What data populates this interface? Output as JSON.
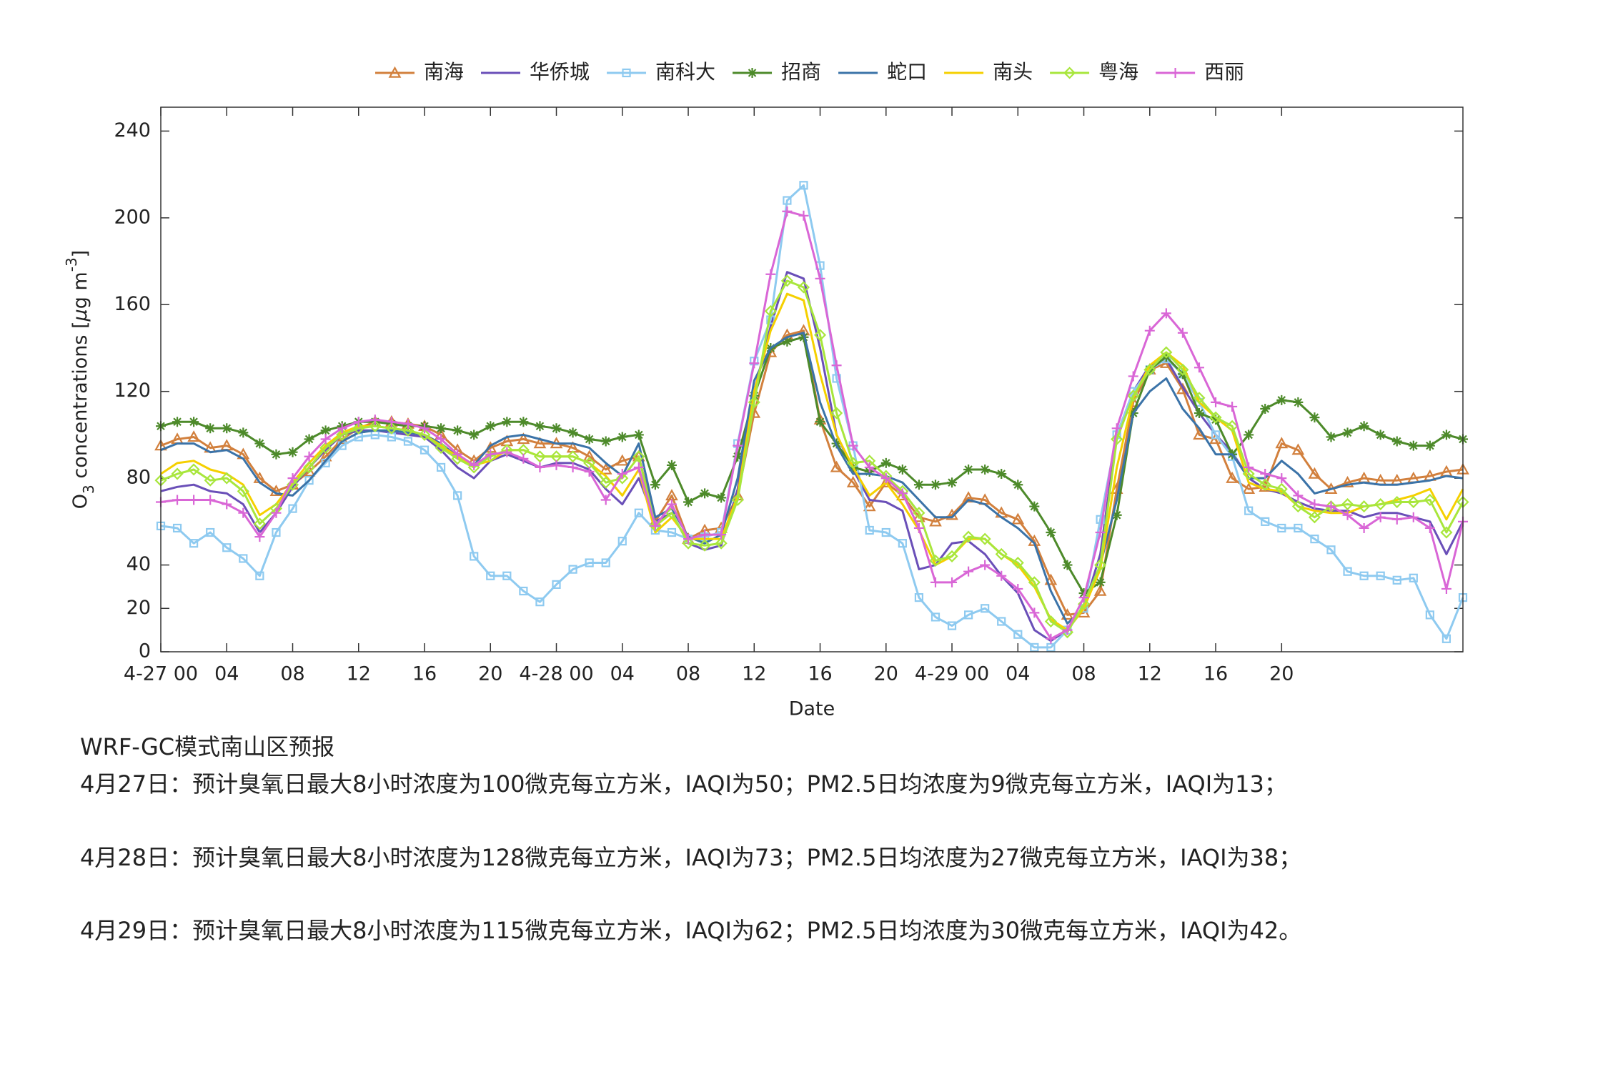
{
  "chart_data": {
    "type": "line",
    "xlabel": "Date",
    "ylabel_parts": [
      {
        "text": "O"
      },
      {
        "text": "3",
        "script": "sub"
      },
      {
        "text": " concentrations ["
      },
      {
        "text": "μ",
        "style": "italic"
      },
      {
        "text": "g m"
      },
      {
        "text": "-3",
        "script": "sup"
      },
      {
        "text": "]"
      }
    ],
    "x": [
      0,
      1,
      2,
      3,
      4,
      5,
      6,
      7,
      8,
      9,
      10,
      11,
      12,
      13,
      14,
      15,
      16,
      17,
      18,
      19,
      20,
      21,
      22,
      23,
      24,
      25,
      26,
      27,
      28,
      29,
      30,
      31,
      32,
      33,
      34,
      35,
      36,
      37,
      38,
      39,
      40,
      41,
      42,
      43,
      44,
      45,
      46,
      47,
      48,
      49,
      50,
      51,
      52,
      53,
      54,
      55,
      56,
      57,
      58,
      59,
      60,
      61,
      62,
      63,
      64,
      65,
      66,
      67,
      68,
      69,
      70,
      71,
      72,
      73,
      74,
      75,
      76,
      77,
      78,
      79
    ],
    "xlim": [
      0,
      79
    ],
    "xticks": [
      {
        "value": 0,
        "label": "4-27 00"
      },
      {
        "value": 4,
        "label": "04"
      },
      {
        "value": 8,
        "label": "08"
      },
      {
        "value": 12,
        "label": "12"
      },
      {
        "value": 16,
        "label": "16"
      },
      {
        "value": 20,
        "label": "20"
      },
      {
        "value": 24,
        "label": "4-28 00"
      },
      {
        "value": 28,
        "label": "04"
      },
      {
        "value": 32,
        "label": "08"
      },
      {
        "value": 36,
        "label": "12"
      },
      {
        "value": 40,
        "label": "16"
      },
      {
        "value": 44,
        "label": "20"
      },
      {
        "value": 48,
        "label": "4-29 00"
      },
      {
        "value": 52,
        "label": "04"
      },
      {
        "value": 56,
        "label": "08"
      },
      {
        "value": 60,
        "label": "12"
      },
      {
        "value": 64,
        "label": "16"
      },
      {
        "value": 68,
        "label": "20"
      }
    ],
    "ylim": [
      0,
      251
    ],
    "yticks": [
      0,
      20,
      40,
      80,
      120,
      160,
      200,
      240
    ],
    "legend": "top",
    "series": [
      {
        "name": "南海",
        "color": "#d2803d",
        "marker": "triangle",
        "values": [
          95,
          98,
          99,
          94,
          95,
          91,
          80,
          74,
          77,
          83,
          90,
          98,
          103,
          106,
          106,
          105,
          104,
          100,
          93,
          88,
          94,
          97,
          98,
          96,
          96,
          94,
          90,
          84,
          88,
          90,
          60,
          72,
          52,
          56,
          57,
          72,
          110,
          138,
          146,
          148,
          107,
          85,
          78,
          67,
          78,
          72,
          62,
          60,
          63,
          71,
          70,
          64,
          61,
          51,
          33,
          17,
          18,
          28,
          75,
          115,
          130,
          133,
          121,
          100,
          98,
          80,
          75,
          76,
          96,
          93,
          82,
          75,
          78,
          80,
          79,
          79,
          80,
          81,
          83,
          84
        ]
      },
      {
        "name": "华侨城",
        "color": "#6a4fb8",
        "marker": "none",
        "values": [
          74,
          76,
          77,
          74,
          73,
          68,
          55,
          64,
          76,
          85,
          93,
          100,
          102,
          102,
          101,
          100,
          99,
          93,
          85,
          80,
          88,
          91,
          88,
          85,
          87,
          87,
          84,
          75,
          68,
          80,
          60,
          64,
          50,
          47,
          49,
          75,
          120,
          150,
          175,
          172,
          140,
          100,
          84,
          70,
          69,
          65,
          38,
          40,
          50,
          51,
          45,
          35,
          27,
          10,
          5,
          10,
          20,
          45,
          100,
          120,
          132,
          135,
          122,
          110,
          100,
          92,
          80,
          75,
          73,
          69,
          66,
          65,
          65,
          62,
          64,
          64,
          62,
          60,
          45,
          60
        ]
      },
      {
        "name": "南科大",
        "color": "#8ecaf0",
        "marker": "square",
        "values": [
          58,
          57,
          50,
          55,
          48,
          43,
          35,
          55,
          66,
          79,
          87,
          95,
          99,
          100,
          99,
          97,
          93,
          85,
          72,
          44,
          35,
          35,
          28,
          23,
          31,
          38,
          41,
          41,
          51,
          64,
          56,
          55,
          52,
          53,
          55,
          96,
          134,
          153,
          208,
          215,
          178,
          126,
          95,
          56,
          55,
          50,
          25,
          16,
          12,
          17,
          20,
          14,
          8,
          2,
          2,
          10,
          20,
          61,
          100,
          120,
          130,
          135,
          128,
          115,
          100,
          90,
          65,
          60,
          57,
          57,
          52,
          47,
          37,
          35,
          35,
          33,
          34,
          17,
          6,
          25
        ]
      },
      {
        "name": "招商",
        "color": "#4d8a2a",
        "marker": "star",
        "values": [
          104,
          106,
          106,
          103,
          103,
          101,
          96,
          91,
          92,
          98,
          102,
          104,
          106,
          106,
          105,
          104,
          104,
          103,
          102,
          100,
          104,
          106,
          106,
          104,
          103,
          101,
          98,
          97,
          99,
          100,
          77,
          86,
          69,
          73,
          71,
          90,
          118,
          140,
          143,
          145,
          106,
          96,
          85,
          83,
          87,
          84,
          77,
          77,
          78,
          84,
          84,
          82,
          77,
          67,
          55,
          40,
          27,
          32,
          63,
          110,
          130,
          136,
          128,
          110,
          107,
          91,
          100,
          112,
          116,
          115,
          108,
          99,
          101,
          104,
          100,
          97,
          95,
          95,
          100,
          98
        ]
      },
      {
        "name": "蛇口",
        "color": "#3b73a8",
        "marker": "none",
        "values": [
          93,
          96,
          96,
          92,
          93,
          89,
          78,
          73,
          72,
          79,
          88,
          97,
          101,
          102,
          102,
          101,
          100,
          96,
          90,
          86,
          95,
          99,
          100,
          98,
          96,
          96,
          94,
          87,
          81,
          96,
          62,
          66,
          53,
          50,
          54,
          80,
          125,
          140,
          145,
          147,
          115,
          95,
          82,
          82,
          81,
          78,
          70,
          62,
          62,
          70,
          68,
          62,
          57,
          50,
          28,
          13,
          20,
          40,
          70,
          110,
          120,
          126,
          112,
          103,
          91,
          91,
          80,
          80,
          88,
          82,
          73,
          75,
          77,
          78,
          77,
          77,
          78,
          79,
          81,
          80
        ]
      },
      {
        "name": "南头",
        "color": "#f5d000",
        "marker": "none",
        "values": [
          82,
          87,
          88,
          84,
          82,
          77,
          63,
          68,
          78,
          87,
          95,
          101,
          104,
          104,
          103,
          102,
          100,
          95,
          90,
          86,
          88,
          93,
          93,
          90,
          90,
          90,
          87,
          81,
          72,
          84,
          55,
          62,
          52,
          52,
          52,
          72,
          120,
          148,
          165,
          162,
          128,
          100,
          85,
          72,
          78,
          68,
          56,
          40,
          44,
          52,
          52,
          45,
          40,
          30,
          15,
          10,
          20,
          38,
          85,
          117,
          132,
          138,
          132,
          115,
          108,
          102,
          78,
          75,
          74,
          67,
          65,
          64,
          64,
          67,
          68,
          70,
          72,
          75,
          61,
          75
        ]
      },
      {
        "name": "粤海",
        "color": "#a8e63c",
        "marker": "diamond",
        "values": [
          79,
          82,
          84,
          79,
          80,
          74,
          59,
          66,
          77,
          85,
          94,
          100,
          103,
          104,
          103,
          102,
          100,
          94,
          89,
          85,
          90,
          93,
          93,
          90,
          90,
          90,
          87,
          78,
          80,
          90,
          58,
          64,
          50,
          49,
          50,
          70,
          115,
          157,
          171,
          168,
          146,
          110,
          87,
          88,
          81,
          74,
          64,
          42,
          44,
          53,
          52,
          45,
          41,
          32,
          14,
          9,
          22,
          40,
          98,
          118,
          130,
          138,
          130,
          117,
          108,
          104,
          82,
          77,
          75,
          67,
          62,
          67,
          68,
          67,
          68,
          69,
          69,
          70,
          55,
          69
        ]
      },
      {
        "name": "西丽",
        "color": "#d966d6",
        "marker": "plus",
        "values": [
          69,
          70,
          70,
          70,
          68,
          64,
          53,
          64,
          80,
          90,
          98,
          103,
          106,
          107,
          106,
          105,
          103,
          98,
          91,
          86,
          91,
          92,
          89,
          85,
          86,
          85,
          83,
          70,
          82,
          85,
          58,
          68,
          52,
          54,
          54,
          95,
          133,
          174,
          203,
          201,
          172,
          132,
          95,
          85,
          80,
          73,
          57,
          32,
          32,
          37,
          40,
          35,
          29,
          18,
          6,
          10,
          25,
          55,
          103,
          127,
          148,
          156,
          147,
          131,
          115,
          113,
          85,
          82,
          80,
          72,
          68,
          67,
          63,
          57,
          62,
          61,
          62,
          57,
          29,
          60
        ]
      }
    ]
  },
  "forecast": {
    "title": "WRF-GC模式南山区预报",
    "lines": [
      "4月27日：预计臭氧日最大8小时浓度为100微克每立方米，IAQI为50；PM2.5日均浓度为9微克每立方米，IAQI为13；",
      "4月28日：预计臭氧日最大8小时浓度为128微克每立方米，IAQI为73；PM2.5日均浓度为27微克每立方米，IAQI为38；",
      "4月29日：预计臭氧日最大8小时浓度为115微克每立方米，IAQI为62；PM2.5日均浓度为30微克每立方米，IAQI为42。"
    ]
  }
}
